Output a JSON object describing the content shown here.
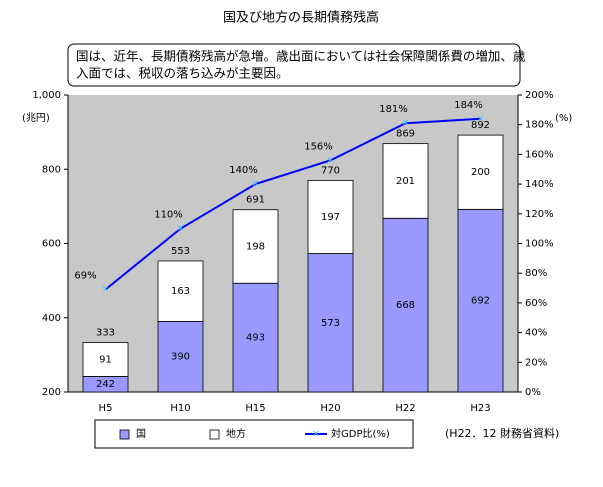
{
  "chart_data": {
    "type": "bar",
    "title": "国及び地方の長期債務残高",
    "annotation": [
      "国は、近年、長期債務残高が急増。歳出面においては社会保障関係費の増加、歳",
      "入面では、税収の落ち込みが主要因。"
    ],
    "y_label": "(兆円)",
    "y2_label": "(%)",
    "source": "(H22．12 財務省資料)",
    "categories": [
      "H5",
      "H10",
      "H15",
      "H20",
      "H22",
      "H23"
    ],
    "series": [
      {
        "name": "国",
        "color": "#9999ff",
        "values": [
          242,
          390,
          493,
          573,
          668,
          692
        ]
      },
      {
        "name": "地方",
        "color": "#ffffff",
        "values": [
          91,
          163,
          198,
          197,
          201,
          200
        ]
      },
      {
        "name": "対GDP比(%)",
        "color": "#0000ff",
        "axis": "y2",
        "type": "line",
        "values": [
          69,
          110,
          140,
          156,
          181,
          184
        ],
        "value_labels": [
          "69%",
          "110%",
          "140%",
          "156%",
          "181%",
          "184%"
        ]
      }
    ],
    "totals": [
      333,
      553,
      691,
      770,
      869,
      892
    ],
    "ylim": [
      200,
      1000
    ],
    "yticks": [
      200,
      400,
      600,
      800,
      {
        "value": 1000,
        "label": "1,000"
      }
    ],
    "y2lim": [
      0,
      200
    ],
    "y2ticks": [
      {
        "value": 0,
        "label": "0%"
      },
      {
        "value": 20,
        "label": "20%"
      },
      {
        "value": 40,
        "label": "40%"
      },
      {
        "value": 60,
        "label": "60%"
      },
      {
        "value": 80,
        "label": "80%"
      },
      {
        "value": 100,
        "label": "100%"
      },
      {
        "value": 120,
        "label": "120%"
      },
      {
        "value": 140,
        "label": "140%"
      },
      {
        "value": 160,
        "label": "160%"
      },
      {
        "value": 180,
        "label": "180%"
      },
      {
        "value": 200,
        "label": "200%"
      }
    ],
    "grid": false,
    "plot_background": "#c8c8c8"
  }
}
